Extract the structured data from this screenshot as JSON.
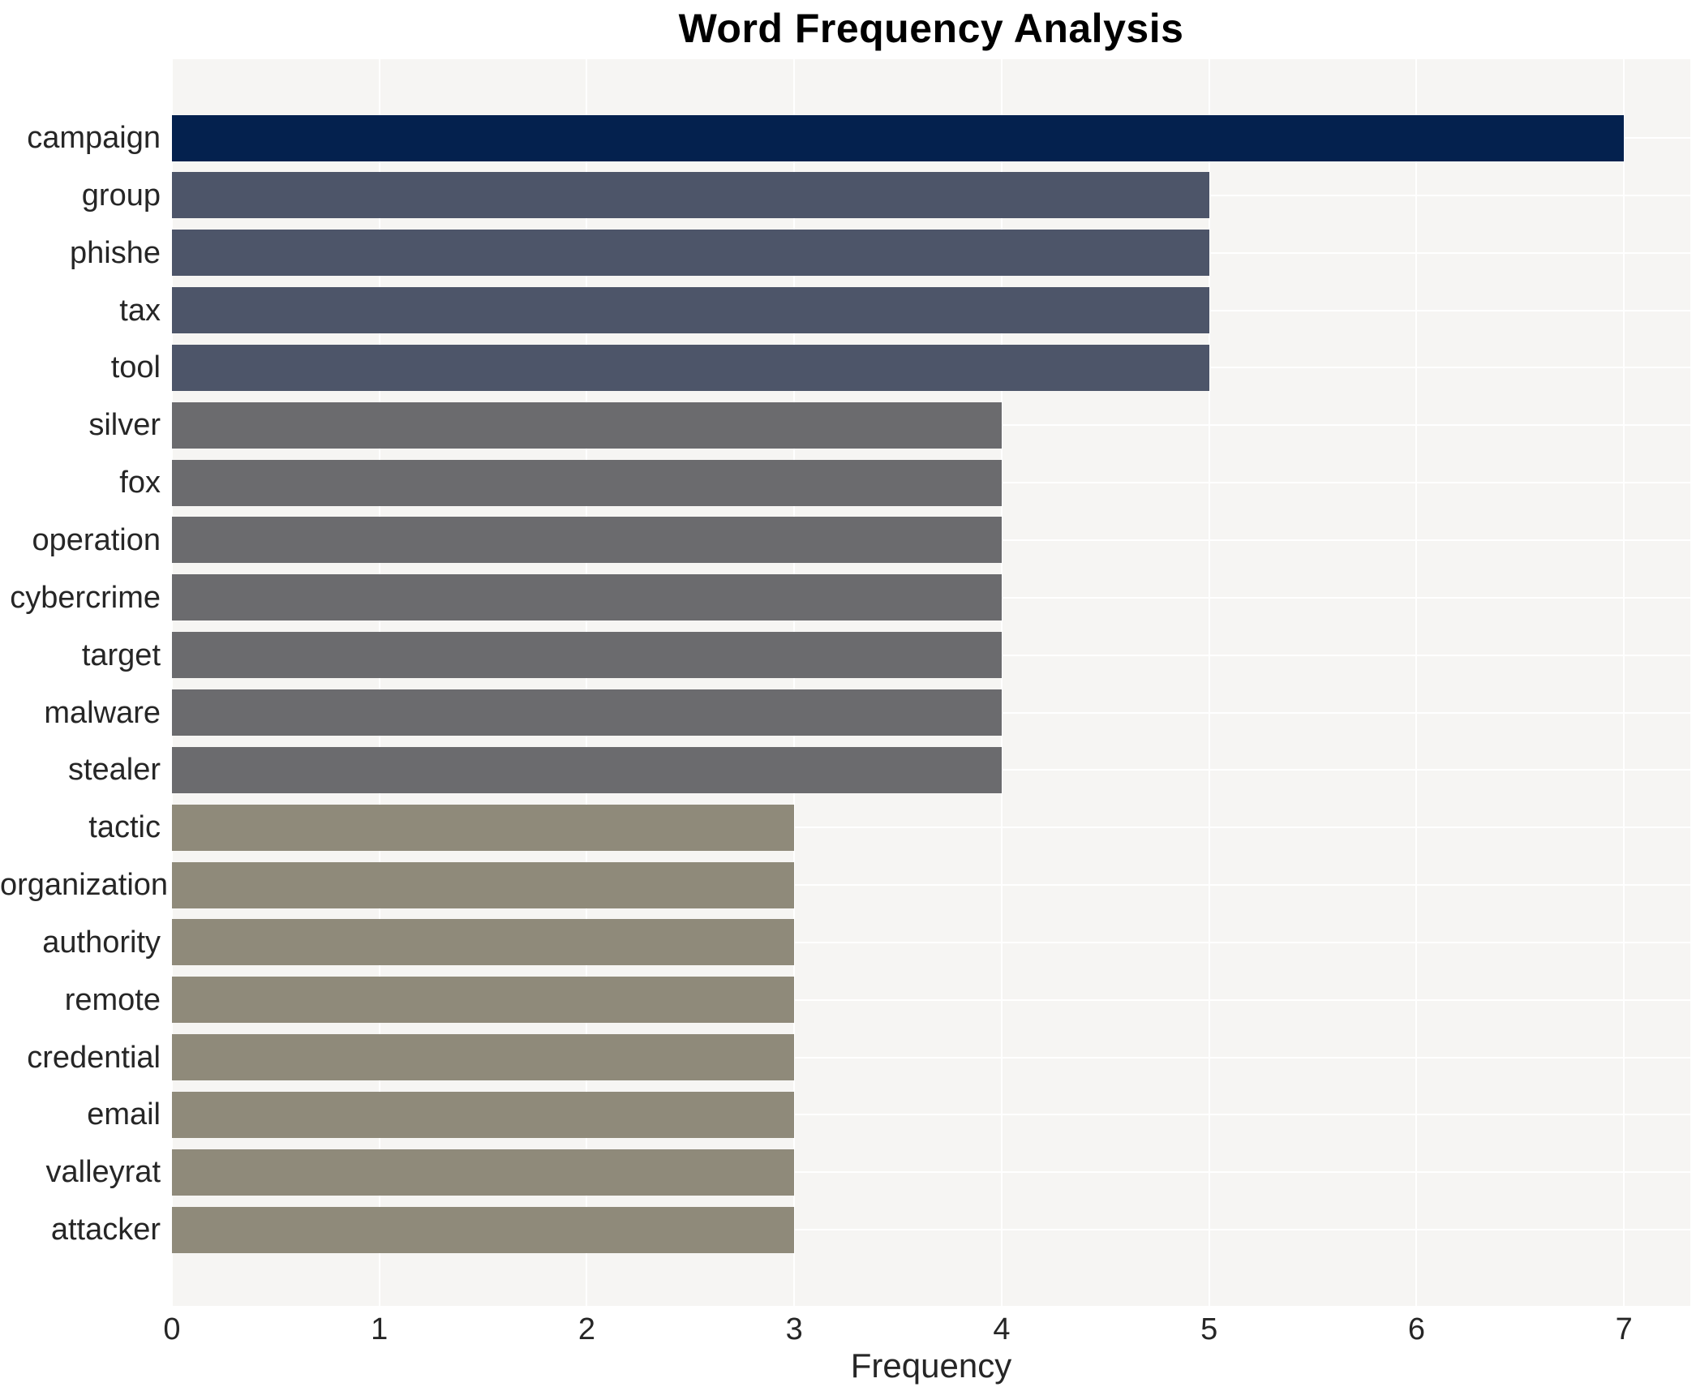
{
  "page": {
    "title": "Word Frequency Analysis"
  },
  "chart_data": {
    "type": "bar",
    "orientation": "horizontal",
    "title": "Word Frequency Analysis",
    "xlabel": "Frequency",
    "ylabel": "",
    "categories": [
      "campaign",
      "group",
      "phishe",
      "tax",
      "tool",
      "silver",
      "fox",
      "operation",
      "cybercrime",
      "target",
      "malware",
      "stealer",
      "tactic",
      "organization",
      "authority",
      "remote",
      "credential",
      "email",
      "valleyrat",
      "attacker"
    ],
    "values": [
      7,
      5,
      5,
      5,
      5,
      4,
      4,
      4,
      4,
      4,
      4,
      4,
      3,
      3,
      3,
      3,
      3,
      3,
      3,
      3
    ],
    "xticks": [
      0,
      1,
      2,
      3,
      4,
      5,
      6,
      7
    ],
    "xlim": [
      0,
      7.32
    ],
    "grid": true,
    "legend_position": "none",
    "plot_bg_color": "#f6f5f3",
    "grid_color": "#ffffff",
    "text_color": "#262626",
    "bar_colors_by_value": {
      "7": "#04214e",
      "5": "#4d5569",
      "4": "#6b6b6e",
      "3": "#8f8a7a"
    }
  }
}
